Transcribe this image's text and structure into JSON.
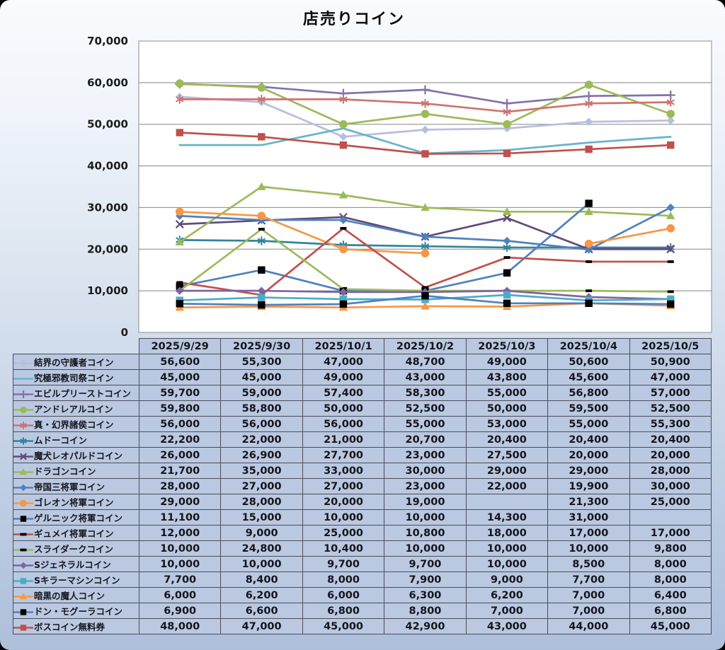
{
  "title": "店売りコイン",
  "chart_data": {
    "type": "line",
    "title": "店売りコイン",
    "categories": [
      "2025/9/29",
      "2025/9/30",
      "2025/10/1",
      "2025/10/2",
      "2025/10/3",
      "2025/10/4",
      "2025/10/5"
    ],
    "y_axis": {
      "min": 0,
      "max": 70000,
      "step": 10000,
      "tick_labels": [
        "0",
        "10,000",
        "20,000",
        "30,000",
        "40,000",
        "50,000",
        "60,000",
        "70,000"
      ]
    },
    "grid": true,
    "legend_position": "table-left",
    "plot_bg": "#ffffff",
    "grid_color": "#858585",
    "series": [
      {
        "name": "結界の守護者コイン",
        "color": "#b7bedd",
        "marker": "diamond",
        "marker_color": "#b7bedd",
        "values": [
          56600,
          55300,
          47000,
          48700,
          49000,
          50600,
          50900
        ]
      },
      {
        "name": "究極邪教司祭コイン",
        "color": "#68b3c9",
        "marker": "none",
        "marker_color": "#68b3c9",
        "values": [
          45000,
          45000,
          49000,
          43000,
          43800,
          45600,
          47000
        ]
      },
      {
        "name": "エビルプリーストコイン",
        "color": "#8571a9",
        "marker": "plus",
        "marker_color": "#8571a9",
        "values": [
          59700,
          59000,
          57400,
          58300,
          55000,
          56800,
          57000
        ]
      },
      {
        "name": "アンドレアルコイン",
        "color": "#9bbb59",
        "marker": "circle",
        "marker_color": "#9bbb59",
        "values": [
          59800,
          58800,
          50000,
          52500,
          50000,
          59500,
          52500
        ]
      },
      {
        "name": "真・幻界諸侯コイン",
        "color": "#cd7371",
        "marker": "asterisk",
        "marker_color": "#cd7371",
        "values": [
          56000,
          56000,
          56000,
          55000,
          53000,
          55000,
          55300
        ]
      },
      {
        "name": "ムドーコイン",
        "color": "#31859c",
        "marker": "asterisk",
        "marker_color": "#31859c",
        "values": [
          22200,
          22000,
          21000,
          20700,
          20400,
          20400,
          20400
        ]
      },
      {
        "name": "魔犬レオパルドコイン",
        "color": "#604a7b",
        "marker": "x",
        "marker_color": "#604a7b",
        "values": [
          26000,
          26900,
          27700,
          23000,
          27500,
          20000,
          20000
        ]
      },
      {
        "name": "ドラゴンコイン",
        "color": "#9bbb59",
        "marker": "triangle",
        "marker_color": "#9bbb59",
        "values": [
          21700,
          35000,
          33000,
          30000,
          29000,
          29000,
          28000
        ]
      },
      {
        "name": "帝国三将軍コイン",
        "color": "#4f81bd",
        "marker": "diamond",
        "marker_color": "#4f81bd",
        "values": [
          28000,
          27000,
          27000,
          23000,
          22000,
          19900,
          30000
        ]
      },
      {
        "name": "ゴレオン将軍コイン",
        "color": "#f79646",
        "marker": "circle",
        "marker_color": "#f79646",
        "values": [
          29000,
          28000,
          20000,
          19000,
          null,
          21300,
          25000
        ]
      },
      {
        "name": "ゲルニック将軍コイン",
        "color": "#4f81bd",
        "marker": "square",
        "marker_color": "#000000",
        "values": [
          11100,
          15000,
          10000,
          10000,
          14300,
          31000,
          null
        ]
      },
      {
        "name": "ギュメイ将軍コイン",
        "color": "#c0504d",
        "marker": "dash",
        "marker_color": "#000000",
        "values": [
          12000,
          9000,
          25000,
          10800,
          18000,
          17000,
          17000
        ]
      },
      {
        "name": "スライダークコイン",
        "color": "#9bbb59",
        "marker": "dash",
        "marker_color": "#000000",
        "values": [
          10000,
          24800,
          10400,
          10000,
          10000,
          10000,
          9800
        ]
      },
      {
        "name": "Sジェネラルコイン",
        "color": "#8064a2",
        "marker": "diamond",
        "marker_color": "#8064a2",
        "values": [
          10000,
          10000,
          9700,
          9700,
          10000,
          8500,
          8000
        ]
      },
      {
        "name": "Sキラーマシンコイン",
        "color": "#4bacc6",
        "marker": "square",
        "marker_color": "#4bacc6",
        "values": [
          7700,
          8400,
          8000,
          7900,
          9000,
          7700,
          8000
        ]
      },
      {
        "name": "暗黒の魔人コイン",
        "color": "#f79646",
        "marker": "triangle",
        "marker_color": "#f79646",
        "values": [
          6000,
          6200,
          6000,
          6300,
          6200,
          7000,
          6400
        ]
      },
      {
        "name": "ドン・モグーラコイン",
        "color": "#4f81bd",
        "marker": "square",
        "marker_color": "#000000",
        "values": [
          6900,
          6600,
          6800,
          8800,
          7000,
          7000,
          6800
        ]
      },
      {
        "name": "ボスコイン無料券",
        "color": "#c0504d",
        "marker": "square",
        "marker_color": "#c0504d",
        "values": [
          48000,
          47000,
          45000,
          42900,
          43000,
          44000,
          45000
        ]
      }
    ]
  }
}
